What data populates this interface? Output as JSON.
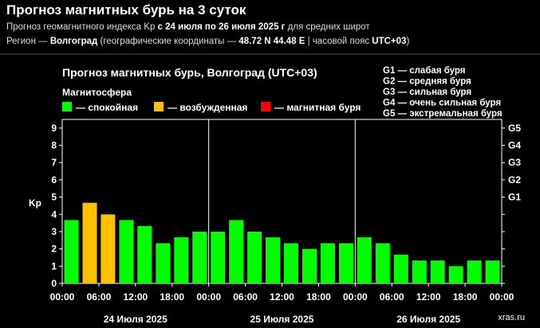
{
  "header": {
    "title": "Прогноз магнитных бурь на 3 суток",
    "line1": {
      "pre": "Прогноз геомагнитного индекса Kp ",
      "bold": "с 24 июля по 26 июля 2025 г",
      "post": " для средних широт"
    },
    "line2": {
      "pre": "Регион — ",
      "region": "Волгоград",
      "mid": " (географические координаты — ",
      "coords": "48.72 N 44.48 E",
      "sep": " | часовой пояс ",
      "tz": "UTC+03",
      "end": ")"
    }
  },
  "chart_data": {
    "type": "bar",
    "title": "Прогноз магнитных бурь, Волгоград (UTC+03)",
    "subtitle": "Магнитосфера",
    "ylabel": "Kp",
    "ylim": [
      0,
      9.5
    ],
    "yticks": [
      "0",
      "1",
      "2",
      "3",
      "4",
      "5",
      "6",
      "7",
      "8",
      "9"
    ],
    "right_ticks": [
      {
        "label": "G1",
        "value": 5
      },
      {
        "label": "G2",
        "value": 6
      },
      {
        "label": "G3",
        "value": 7
      },
      {
        "label": "G4",
        "value": 8
      },
      {
        "label": "G5",
        "value": 9
      }
    ],
    "legend": [
      {
        "label": "— спокойная",
        "color": "#00ff00"
      },
      {
        "label": "— возбужденная",
        "color": "#ffc000"
      },
      {
        "label": "— магнитная буря",
        "color": "#ff0000"
      }
    ],
    "storm_legend": [
      "G1 — слабая буря",
      "G2 — средняя буря",
      "G3 — сильная буря",
      "G4 — очень сильная буря",
      "G5 — экстремальная буря"
    ],
    "x_tick_labels": [
      "00:00",
      "06:00",
      "12:00",
      "18:00",
      "00:00",
      "06:00",
      "12:00",
      "18:00",
      "00:00",
      "06:00",
      "12:00",
      "18:00",
      "00:00"
    ],
    "days": [
      "24 Июля 2025",
      "25 Июля 2025",
      "26 Июля 2025"
    ],
    "values": [
      3.67,
      4.67,
      4.0,
      3.67,
      3.33,
      2.33,
      2.67,
      3.0,
      3.0,
      3.67,
      3.0,
      2.67,
      2.33,
      2.0,
      2.33,
      2.33,
      2.67,
      2.33,
      1.67,
      1.33,
      1.33,
      1.0,
      1.33,
      1.33
    ],
    "bar_colors": [
      "#00ff00",
      "#ffc000",
      "#ffc000",
      "#00ff00",
      "#00ff00",
      "#00ff00",
      "#00ff00",
      "#00ff00",
      "#00ff00",
      "#00ff00",
      "#00ff00",
      "#00ff00",
      "#00ff00",
      "#00ff00",
      "#00ff00",
      "#00ff00",
      "#00ff00",
      "#00ff00",
      "#00ff00",
      "#00ff00",
      "#00ff00",
      "#00ff00",
      "#00ff00",
      "#00ff00"
    ],
    "grid": false
  },
  "watermark": "xras.ru"
}
